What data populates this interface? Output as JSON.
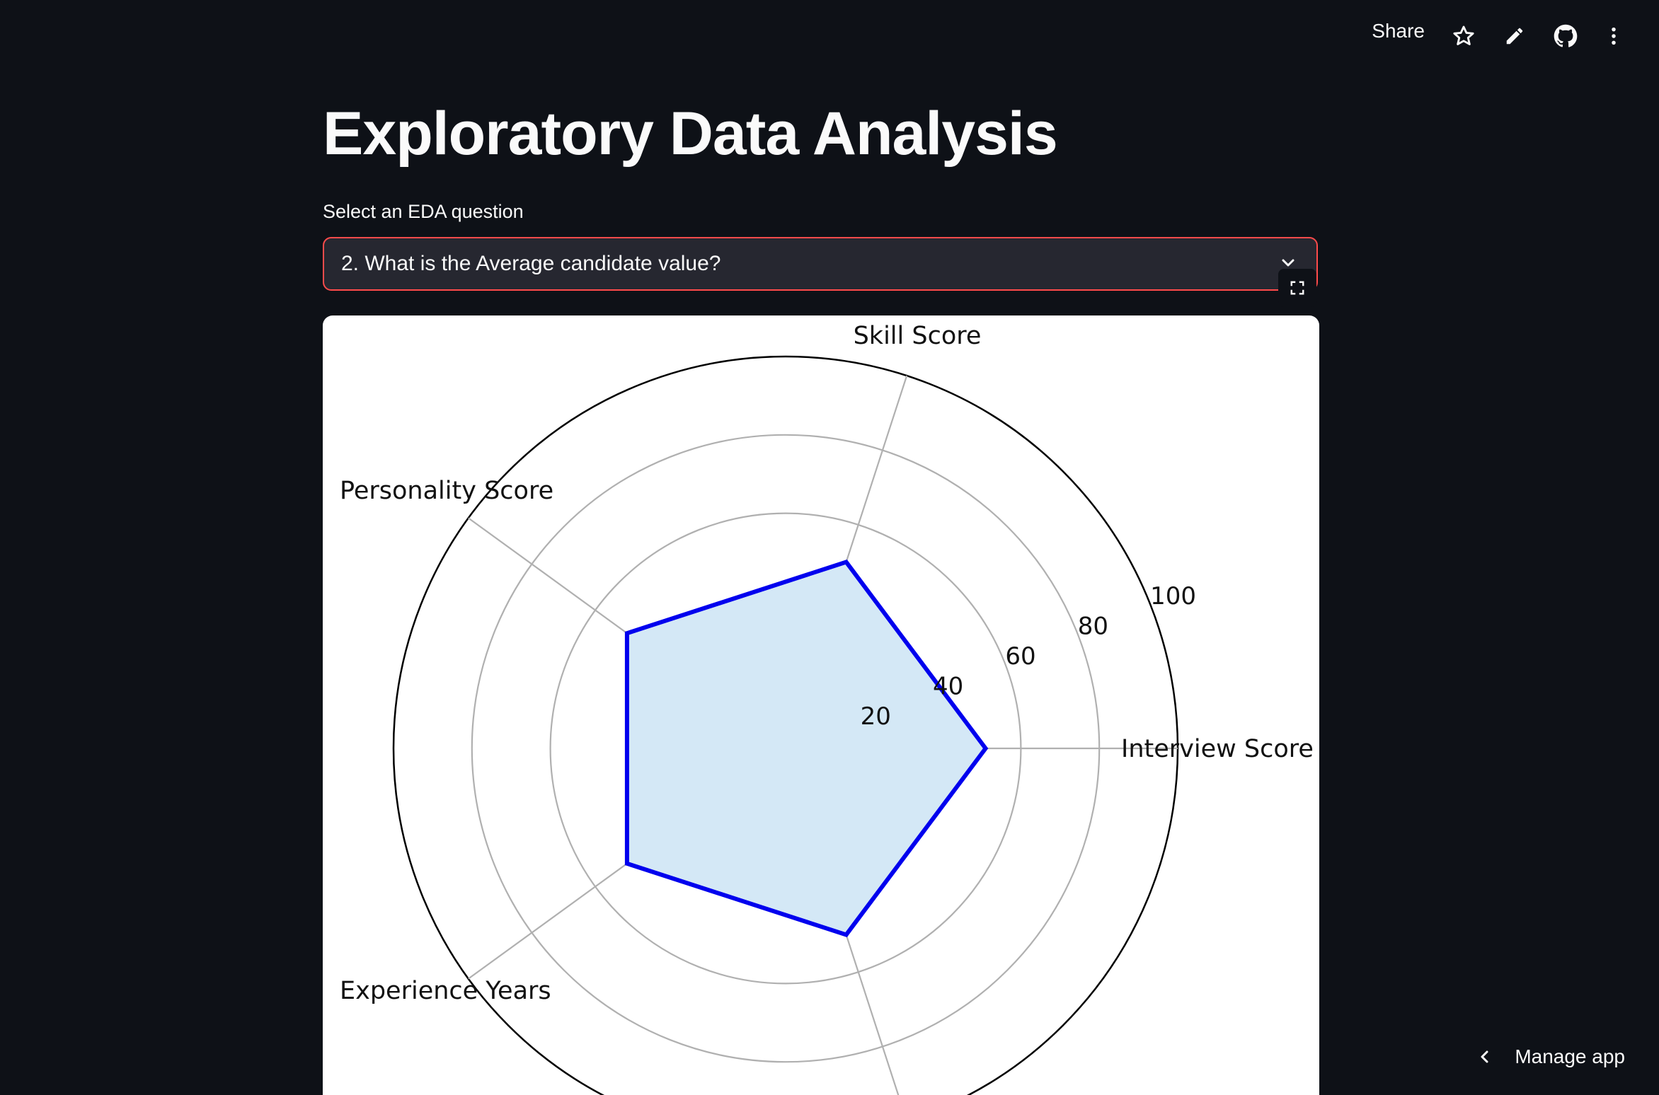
{
  "toolbar": {
    "share_label": "Share",
    "icons": [
      "star-icon",
      "pencil-icon",
      "github-icon",
      "more-vertical-icon"
    ]
  },
  "page": {
    "title": "Exploratory Data Analysis"
  },
  "select": {
    "label": "Select an EDA question",
    "value": "2. What is the Average candidate value?",
    "accent_color": "#ff4b4b"
  },
  "chart_data": {
    "type": "radar",
    "title": "",
    "categories": [
      "Interview Score",
      "Skill Score",
      "Personality Score",
      "Experience Years",
      ""
    ],
    "series": [
      {
        "values": [
          51,
          50,
          50,
          50,
          50
        ],
        "color": "#0000ee",
        "fill": "#d4e8f6"
      }
    ],
    "radial_ticks": [
      20,
      40,
      60,
      80,
      100
    ],
    "rlim": [
      0,
      100
    ],
    "grid": true
  },
  "footer": {
    "manage_label": "Manage app"
  }
}
